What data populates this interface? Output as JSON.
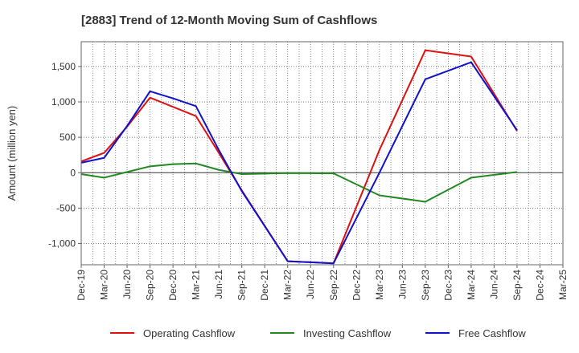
{
  "chart_data": {
    "type": "line",
    "title": "[2883]  Trend of 12-Month Moving Sum of Cashflows",
    "xlabel": "",
    "ylabel": "Amount (million yen)",
    "categories": [
      "Dec-19",
      "Mar-20",
      "Jun-20",
      "Sep-20",
      "Dec-20",
      "Mar-21",
      "Jun-21",
      "Sep-21",
      "Dec-21",
      "Mar-22",
      "Jun-22",
      "Sep-22",
      "Dec-22",
      "Mar-23",
      "Jun-23",
      "Sep-23",
      "Dec-23",
      "Mar-24",
      "Jun-24",
      "Sep-24",
      "Dec-24",
      "Mar-25"
    ],
    "ylim": [
      -1300,
      1850
    ],
    "yticks": [
      -1000,
      -500,
      0,
      500,
      1000,
      1500
    ],
    "ytick_labels": [
      "-1,000",
      "-500",
      "0",
      "500",
      "1,000",
      "1,500"
    ],
    "grid": true,
    "legend_position": "bottom",
    "series": [
      {
        "name": "Operating Cashflow",
        "color": "#dd1111",
        "values": [
          160,
          280,
          650,
          1060,
          930,
          800,
          280,
          -250,
          null,
          -1250,
          null,
          -1280,
          null,
          320,
          null,
          1730,
          null,
          1640,
          null,
          590,
          null,
          null
        ]
      },
      {
        "name": "Investing Cashflow",
        "color": "#228822",
        "values": [
          -20,
          -70,
          10,
          90,
          120,
          130,
          40,
          -20,
          null,
          -5,
          null,
          -10,
          null,
          -320,
          null,
          -410,
          null,
          -70,
          null,
          10,
          null,
          null
        ]
      },
      {
        "name": "Free Cashflow",
        "color": "#1111cc",
        "values": [
          140,
          210,
          660,
          1150,
          1050,
          940,
          320,
          -260,
          null,
          -1250,
          null,
          -1280,
          null,
          0,
          null,
          1320,
          null,
          1560,
          null,
          600,
          null,
          null
        ]
      }
    ]
  }
}
